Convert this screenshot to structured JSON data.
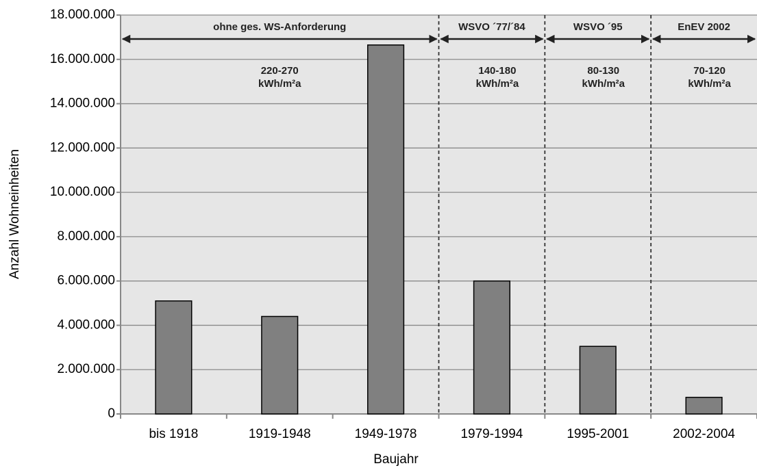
{
  "chart_data": {
    "type": "bar",
    "categories": [
      "bis 1918",
      "1919-1948",
      "1949-1978",
      "1979-1994",
      "1995-2001",
      "2002-2004"
    ],
    "values": [
      5100000,
      4400000,
      16650000,
      6000000,
      3050000,
      750000
    ],
    "color": "#808080",
    "xlabel": "Baujahr",
    "ylabel": "Anzahl Wohneinheiten",
    "ylim": [
      0,
      18000000
    ],
    "yticks": [
      0,
      {
        "value": 2000000,
        "label": "2.000.000"
      },
      {
        "value": 4000000,
        "label": "4.000.000"
      },
      {
        "value": 6000000,
        "label": "6.000.000"
      },
      {
        "value": 8000000,
        "label": "8.000.000"
      },
      {
        "value": 10000000,
        "label": "10.000.000"
      },
      {
        "value": 12000000,
        "label": "12.000.000"
      },
      {
        "value": 14000000,
        "label": "14.000.000"
      },
      {
        "value": 16000000,
        "label": "16.000.000"
      },
      {
        "value": 18000000,
        "label": "18.000.000"
      }
    ],
    "grid": true,
    "periods": [
      {
        "label": "ohne ges. WS-Anforderung",
        "range": "220-270",
        "unit": "kWh/m²a"
      },
      {
        "label": "WSVO ´77/´84",
        "range": "140-180",
        "unit": "kWh/m²a"
      },
      {
        "label": "WSVO ´95",
        "range": "80-130",
        "unit": "kWh/m²a"
      },
      {
        "label": "EnEV 2002",
        "range": "70-120",
        "unit": "kWh/m²a"
      }
    ]
  }
}
